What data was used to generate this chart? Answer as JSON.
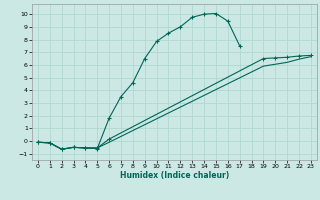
{
  "xlabel": "Humidex (Indice chaleur)",
  "bg_color": "#cce8e4",
  "grid_color": "#b0d8d2",
  "line_color": "#006655",
  "xlim": [
    -0.5,
    23.5
  ],
  "ylim": [
    -1.5,
    10.8
  ],
  "xticks": [
    0,
    1,
    2,
    3,
    4,
    5,
    6,
    7,
    8,
    9,
    10,
    11,
    12,
    13,
    14,
    15,
    16,
    17,
    18,
    19,
    20,
    21,
    22,
    23
  ],
  "yticks": [
    -1,
    0,
    1,
    2,
    3,
    4,
    5,
    6,
    7,
    8,
    9,
    10
  ],
  "curve1_x": [
    0,
    1,
    2,
    3,
    4,
    5,
    6,
    7,
    8,
    9,
    10,
    11,
    12,
    13,
    14,
    15,
    16,
    17
  ],
  "curve1_y": [
    -0.1,
    -0.15,
    -0.65,
    -0.5,
    -0.55,
    -0.6,
    1.8,
    3.5,
    4.6,
    6.5,
    7.85,
    8.5,
    9.0,
    9.75,
    10.0,
    10.05,
    9.45,
    7.5
  ],
  "curve2_x": [
    0,
    1,
    2,
    3,
    4,
    5,
    6,
    19,
    20,
    21,
    22,
    23
  ],
  "curve2_y": [
    -0.1,
    -0.15,
    -0.65,
    -0.5,
    -0.55,
    -0.55,
    0.15,
    6.5,
    6.55,
    6.6,
    6.7,
    6.75
  ],
  "curve3_x": [
    0,
    1,
    2,
    3,
    4,
    5,
    6,
    19,
    20,
    21,
    22,
    23
  ],
  "curve3_y": [
    -0.1,
    -0.15,
    -0.65,
    -0.5,
    -0.55,
    -0.55,
    -0.1,
    5.9,
    6.05,
    6.2,
    6.45,
    6.65
  ]
}
